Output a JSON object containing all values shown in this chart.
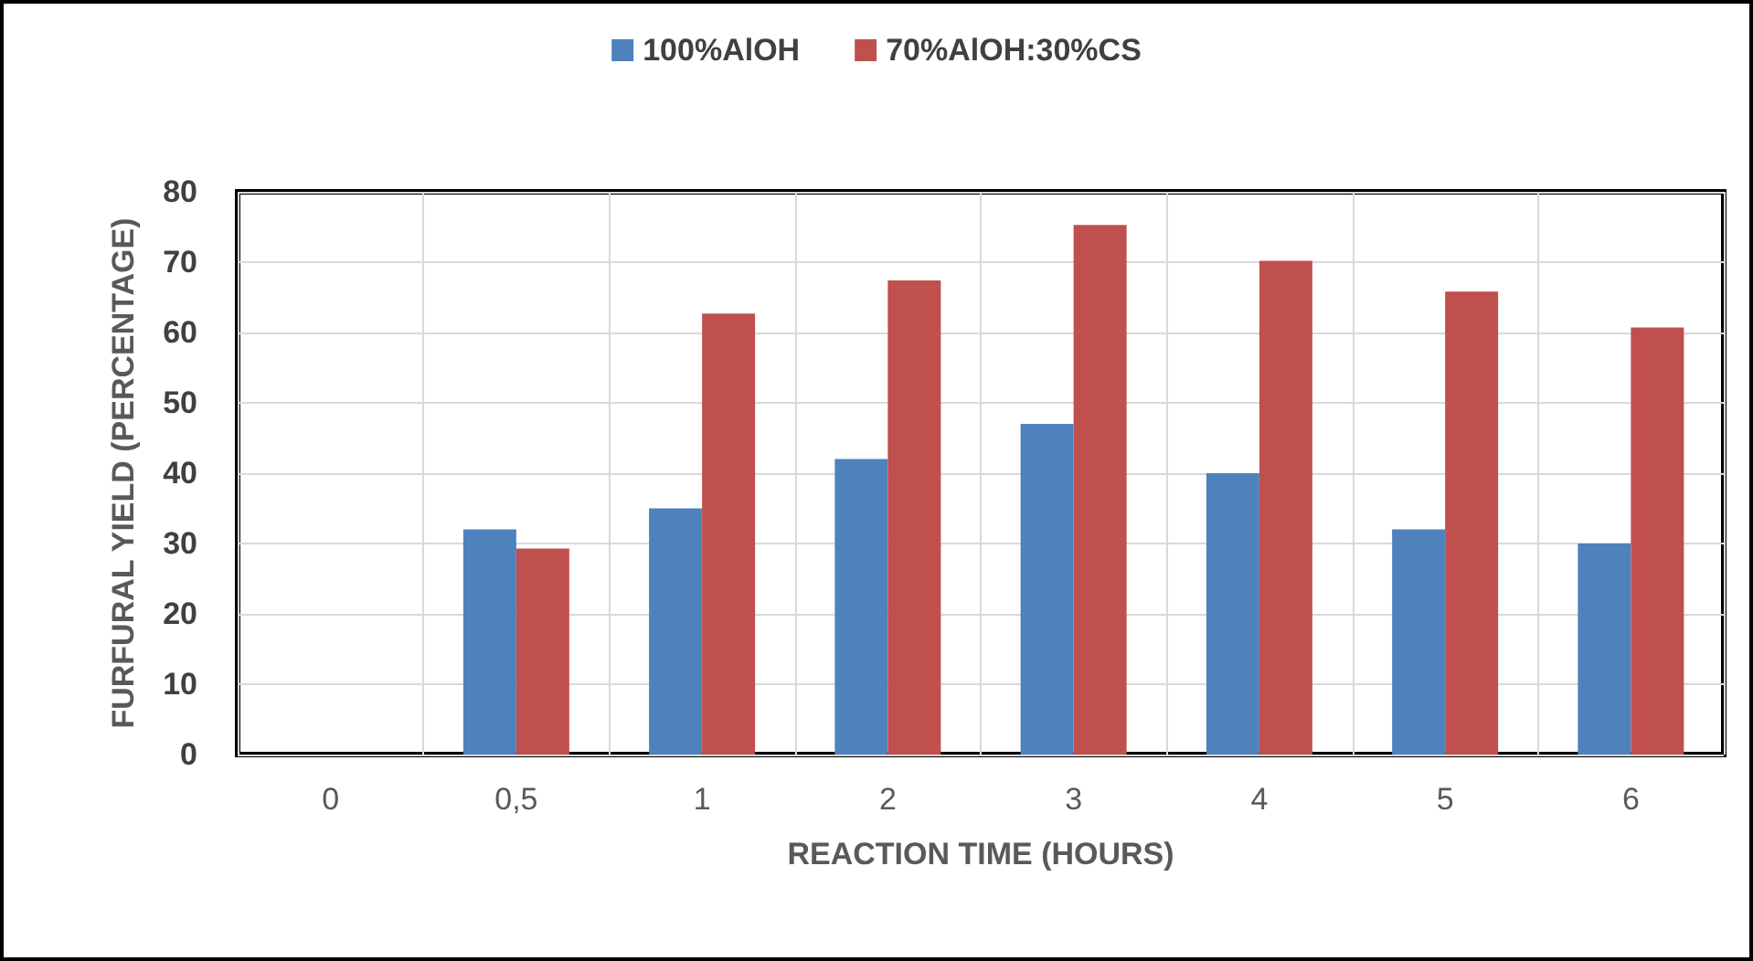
{
  "chart_data": {
    "type": "bar",
    "xlabel": "REACTION TIME (HOURS)",
    "ylabel": "FURFURAL YIELD (PERCENTAGE)",
    "categories": [
      "0",
      "0,5",
      "1",
      "2",
      "3",
      "4",
      "5",
      "6"
    ],
    "series": [
      {
        "name": "100%AlOH",
        "color": "#4f81bd",
        "values": [
          0,
          32,
          35,
          42,
          47,
          40,
          32,
          30
        ]
      },
      {
        "name": "70%AlOH:30%CS",
        "color": "#c0504d",
        "values": [
          0,
          29.3,
          62.7,
          67.4,
          75.3,
          70.2,
          65.8,
          60.7
        ]
      }
    ],
    "ylim": [
      0,
      80
    ],
    "yticks": [
      0,
      10,
      20,
      30,
      40,
      50,
      60,
      70,
      80
    ],
    "grid": true,
    "legend": "top"
  }
}
